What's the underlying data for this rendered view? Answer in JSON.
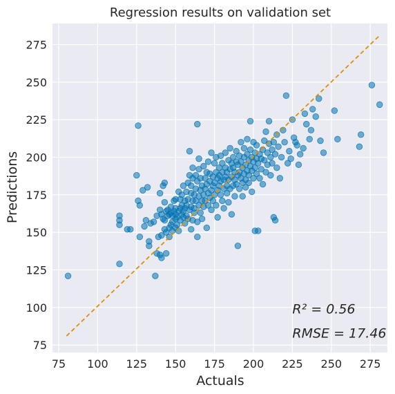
{
  "chart_data": {
    "type": "scatter",
    "title": "Regression results on validation set",
    "xlabel": "Actuals",
    "ylabel": "Predictions",
    "xlim": [
      71,
      286
    ],
    "ylim": [
      70,
      289
    ],
    "xticks": [
      75,
      100,
      125,
      150,
      175,
      200,
      225,
      250,
      275
    ],
    "yticks": [
      75,
      100,
      125,
      150,
      175,
      200,
      225,
      250,
      275
    ],
    "grid": true,
    "background": "#eaeaf2",
    "point_color": "#0173b2",
    "reference_line": {
      "x": [
        80,
        281
      ],
      "y": [
        81,
        281
      ],
      "color": "#de8f05",
      "style": "dashed"
    },
    "annotations": [
      {
        "text": "R² = 0.56",
        "x": 225,
        "y": 96
      },
      {
        "text": "RMSE = 17.46",
        "x": 225,
        "y": 80
      }
    ],
    "points": [
      [
        81,
        121
      ],
      [
        114,
        129
      ],
      [
        114,
        161
      ],
      [
        114,
        158
      ],
      [
        114,
        155
      ],
      [
        119,
        152
      ],
      [
        121,
        152
      ],
      [
        126,
        221
      ],
      [
        125,
        188
      ],
      [
        126,
        171
      ],
      [
        127,
        168
      ],
      [
        127,
        147
      ],
      [
        129,
        178
      ],
      [
        130,
        154
      ],
      [
        131,
        158
      ],
      [
        132,
        180
      ],
      [
        133,
        141
      ],
      [
        133,
        144
      ],
      [
        134,
        156
      ],
      [
        136,
        157
      ],
      [
        137,
        121
      ],
      [
        138,
        161
      ],
      [
        138,
        136
      ],
      [
        139,
        147
      ],
      [
        140,
        165
      ],
      [
        140,
        135
      ],
      [
        140,
        176
      ],
      [
        141,
        148
      ],
      [
        141,
        133
      ],
      [
        141,
        162
      ],
      [
        142,
        181
      ],
      [
        142,
        159
      ],
      [
        143,
        152
      ],
      [
        143,
        158
      ],
      [
        143,
        170
      ],
      [
        143,
        183
      ],
      [
        144,
        164
      ],
      [
        144,
        136
      ],
      [
        144,
        150
      ],
      [
        145,
        161
      ],
      [
        145,
        165
      ],
      [
        146,
        153
      ],
      [
        146,
        162
      ],
      [
        146,
        147
      ],
      [
        147,
        155
      ],
      [
        147,
        163
      ],
      [
        147,
        167
      ],
      [
        148,
        151
      ],
      [
        148,
        157
      ],
      [
        148,
        161
      ],
      [
        149,
        164
      ],
      [
        149,
        171
      ],
      [
        150,
        153
      ],
      [
        150,
        159
      ],
      [
        150,
        162
      ],
      [
        150,
        166
      ],
      [
        150,
        172
      ],
      [
        151,
        155
      ],
      [
        151,
        160
      ],
      [
        152,
        164
      ],
      [
        152,
        177
      ],
      [
        152,
        151
      ],
      [
        153,
        166
      ],
      [
        153,
        172
      ],
      [
        153,
        158
      ],
      [
        154,
        162
      ],
      [
        154,
        168
      ],
      [
        154,
        175
      ],
      [
        155,
        160
      ],
      [
        155,
        181
      ],
      [
        155,
        164
      ],
      [
        156,
        171
      ],
      [
        156,
        156
      ],
      [
        156,
        166
      ],
      [
        157,
        177
      ],
      [
        157,
        161
      ],
      [
        157,
        168
      ],
      [
        158,
        183
      ],
      [
        158,
        159
      ],
      [
        158,
        172
      ],
      [
        159,
        165
      ],
      [
        159,
        204
      ],
      [
        159,
        188
      ],
      [
        160,
        152
      ],
      [
        160,
        176
      ],
      [
        160,
        181
      ],
      [
        160,
        167
      ],
      [
        161,
        158
      ],
      [
        161,
        171
      ],
      [
        161,
        186
      ],
      [
        161,
        193
      ],
      [
        162,
        163
      ],
      [
        162,
        175
      ],
      [
        162,
        166
      ],
      [
        163,
        179
      ],
      [
        163,
        188
      ],
      [
        163,
        171
      ],
      [
        164,
        147
      ],
      [
        164,
        157
      ],
      [
        164,
        222
      ],
      [
        164,
        184
      ],
      [
        165,
        174
      ],
      [
        165,
        192
      ],
      [
        165,
        168
      ],
      [
        165,
        199
      ],
      [
        166,
        163
      ],
      [
        166,
        178
      ],
      [
        166,
        186
      ],
      [
        167,
        171
      ],
      [
        167,
        181
      ],
      [
        167,
        159
      ],
      [
        168,
        194
      ],
      [
        168,
        175
      ],
      [
        168,
        167
      ],
      [
        169,
        186
      ],
      [
        169,
        179
      ],
      [
        169,
        171
      ],
      [
        170,
        190
      ],
      [
        170,
        182
      ],
      [
        170,
        153
      ],
      [
        171,
        176
      ],
      [
        171,
        197
      ],
      [
        171,
        168
      ],
      [
        172,
        184
      ],
      [
        172,
        173
      ],
      [
        172,
        189
      ],
      [
        173,
        178
      ],
      [
        173,
        203
      ],
      [
        173,
        165
      ],
      [
        174,
        187
      ],
      [
        174,
        181
      ],
      [
        174,
        171
      ],
      [
        175,
        196
      ],
      [
        175,
        183
      ],
      [
        175,
        175
      ],
      [
        176,
        190
      ],
      [
        176,
        168
      ],
      [
        176,
        200
      ],
      [
        177,
        186
      ],
      [
        177,
        178
      ],
      [
        177,
        160
      ],
      [
        178,
        193
      ],
      [
        178,
        181
      ],
      [
        178,
        188
      ],
      [
        179,
        175
      ],
      [
        179,
        201
      ],
      [
        179,
        184
      ],
      [
        180,
        190
      ],
      [
        180,
        171
      ],
      [
        180,
        196
      ],
      [
        181,
        185
      ],
      [
        181,
        166
      ],
      [
        181,
        179
      ],
      [
        182,
        193
      ],
      [
        182,
        187
      ],
      [
        182,
        203
      ],
      [
        183,
        181
      ],
      [
        183,
        176
      ],
      [
        183,
        190
      ],
      [
        184,
        198
      ],
      [
        184,
        185
      ],
      [
        184,
        170
      ],
      [
        185,
        192
      ],
      [
        185,
        179
      ],
      [
        185,
        206
      ],
      [
        186,
        187
      ],
      [
        186,
        196
      ],
      [
        186,
        162
      ],
      [
        187,
        181
      ],
      [
        187,
        193
      ],
      [
        187,
        200
      ],
      [
        188,
        185
      ],
      [
        188,
        174
      ],
      [
        188,
        190
      ],
      [
        189,
        197
      ],
      [
        189,
        182
      ],
      [
        189,
        204
      ],
      [
        190,
        188
      ],
      [
        190,
        141
      ],
      [
        190,
        195
      ],
      [
        191,
        179
      ],
      [
        191,
        201
      ],
      [
        191,
        190
      ],
      [
        192,
        186
      ],
      [
        192,
        210
      ],
      [
        192,
        197
      ],
      [
        193,
        183
      ],
      [
        193,
        193
      ],
      [
        193,
        174
      ],
      [
        194,
        200
      ],
      [
        194,
        189
      ],
      [
        194,
        206
      ],
      [
        195,
        185
      ],
      [
        195,
        195
      ],
      [
        195,
        180
      ],
      [
        196,
        202
      ],
      [
        196,
        191
      ],
      [
        196,
        212
      ],
      [
        197,
        188
      ],
      [
        197,
        198
      ],
      [
        197,
        183
      ],
      [
        198,
        194
      ],
      [
        198,
        205
      ],
      [
        198,
        224
      ],
      [
        199,
        191
      ],
      [
        199,
        200
      ],
      [
        199,
        177
      ],
      [
        200,
        197
      ],
      [
        200,
        210
      ],
      [
        200,
        186
      ],
      [
        201,
        193
      ],
      [
        201,
        203
      ],
      [
        201,
        151
      ],
      [
        202,
        199
      ],
      [
        202,
        189
      ],
      [
        202,
        208
      ],
      [
        203,
        196
      ],
      [
        203,
        151
      ],
      [
        204,
        202
      ],
      [
        204,
        186
      ],
      [
        205,
        199
      ],
      [
        205,
        192
      ],
      [
        206,
        205
      ],
      [
        206,
        182
      ],
      [
        207,
        198
      ],
      [
        207,
        211
      ],
      [
        208,
        190
      ],
      [
        208,
        217
      ],
      [
        209,
        203
      ],
      [
        209,
        195
      ],
      [
        210,
        209
      ],
      [
        210,
        224
      ],
      [
        211,
        200
      ],
      [
        211,
        188
      ],
      [
        212,
        205
      ],
      [
        212,
        196
      ],
      [
        213,
        210
      ],
      [
        213,
        160
      ],
      [
        214,
        202
      ],
      [
        214,
        158
      ],
      [
        215,
        215
      ],
      [
        215,
        193
      ],
      [
        216,
        207
      ],
      [
        217,
        186
      ],
      [
        218,
        200
      ],
      [
        219,
        218
      ],
      [
        220,
        210
      ],
      [
        221,
        241
      ],
      [
        222,
        196
      ],
      [
        223,
        204
      ],
      [
        224,
        199
      ],
      [
        225,
        225
      ],
      [
        226,
        213
      ],
      [
        227,
        210
      ],
      [
        228,
        208
      ],
      [
        229,
        195
      ],
      [
        230,
        202
      ],
      [
        232,
        206
      ],
      [
        233,
        229
      ],
      [
        234,
        222
      ],
      [
        236,
        212
      ],
      [
        237,
        218
      ],
      [
        238,
        232
      ],
      [
        240,
        227
      ],
      [
        242,
        239
      ],
      [
        243,
        211
      ],
      [
        245,
        203
      ],
      [
        252,
        231
      ],
      [
        254,
        212
      ],
      [
        268,
        207
      ],
      [
        269,
        215
      ],
      [
        276,
        248
      ],
      [
        281,
        235
      ]
    ]
  }
}
